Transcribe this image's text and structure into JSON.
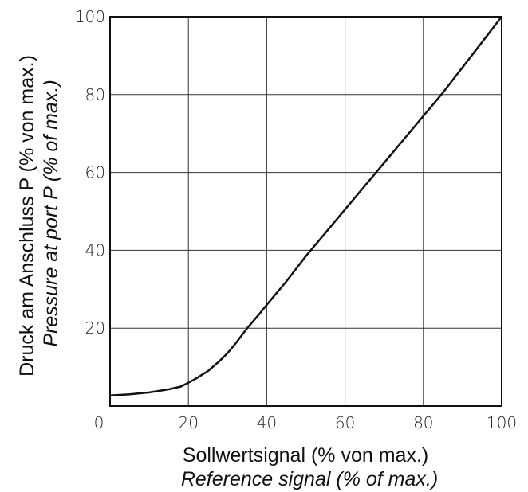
{
  "chart_data": {
    "type": "line",
    "title": "",
    "xlabel": "Sollwertsignal (% von max.)",
    "xlabel_secondary": "Reference signal (% of max.)",
    "ylabel": "Druck am Anschluss P (% von max.)",
    "ylabel_secondary": "Pressure at port P (% of max.)",
    "xlim": [
      0,
      100
    ],
    "ylim": [
      0,
      100
    ],
    "x_ticks": [
      "0",
      "20",
      "40",
      "60",
      "80",
      "100"
    ],
    "y_ticks": [
      "20",
      "40",
      "60",
      "80",
      "100"
    ],
    "grid": true,
    "colors": {
      "line": "#111111",
      "grid": "#333333",
      "frame": "#111111"
    },
    "series": [
      {
        "x": [
          0,
          5,
          10,
          15,
          18,
          20,
          22,
          25,
          28,
          30,
          32,
          35,
          38,
          40,
          45,
          50,
          55,
          60,
          65,
          70,
          75,
          80,
          85,
          90,
          95,
          100
        ],
        "y": [
          2.7,
          3.0,
          3.5,
          4.3,
          5.0,
          6.0,
          7.1,
          9.0,
          11.6,
          13.6,
          16.0,
          20.0,
          23.5,
          26.0,
          32.0,
          38.5,
          44.5,
          50.5,
          56.5,
          62.5,
          68.5,
          74.5,
          80.5,
          87.0,
          93.5,
          100
        ]
      }
    ]
  }
}
